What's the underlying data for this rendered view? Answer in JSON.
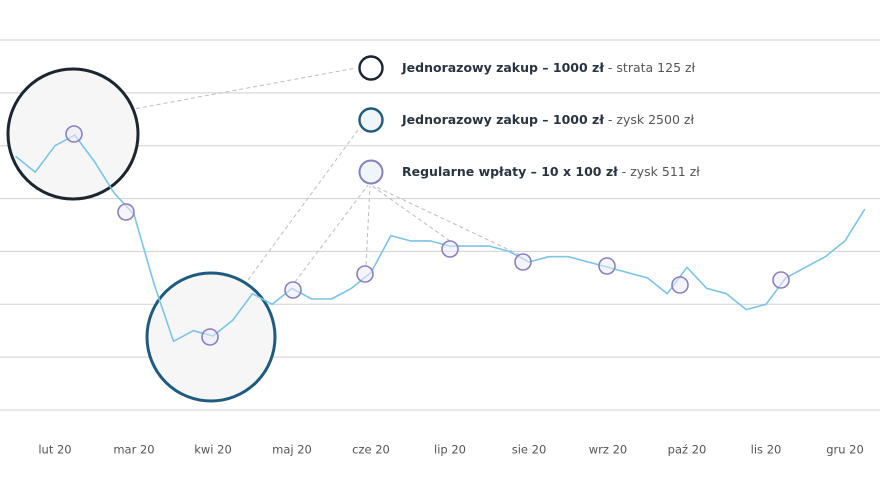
{
  "chart_data": {
    "type": "line",
    "categories": [
      null,
      null,
      "lut 20",
      null,
      null,
      null,
      "mar 20",
      null,
      null,
      null,
      "kwi 20",
      null,
      null,
      null,
      "maj 20",
      null,
      null,
      null,
      "cze 20",
      null,
      null,
      null,
      "lip 20",
      null,
      null,
      null,
      "sie 20",
      null,
      null,
      null,
      "wrz 20",
      null,
      null,
      null,
      "paź 20",
      null,
      null,
      null,
      "lis 20",
      null,
      null,
      null,
      "gru 20",
      null
    ],
    "series": [
      {
        "color": "#7cc4e6",
        "values": [
          4.8,
          4.5,
          5.0,
          5.2,
          4.7,
          4.1,
          3.7,
          2.4,
          1.3,
          1.5,
          1.4,
          1.7,
          2.2,
          2.0,
          2.3,
          2.1,
          2.1,
          2.3,
          2.6,
          3.3,
          3.2,
          3.2,
          3.1,
          3.1,
          3.1,
          3.0,
          2.8,
          2.9,
          2.9,
          2.8,
          2.7,
          2.6,
          2.5,
          2.2,
          2.7,
          2.3,
          2.2,
          1.9,
          2.0,
          2.5,
          2.7,
          2.9,
          3.2,
          3.8
        ]
      }
    ],
    "ylim": [
      0,
      7
    ],
    "yticks": [
      0,
      1,
      2,
      3,
      4,
      5,
      6,
      7
    ],
    "grid": true,
    "legend": [
      {
        "label": "Jednorazowy zakup – 1000 zł",
        "result": " - strata 125 zł",
        "color": "#1c2630"
      },
      {
        "label": "Jednorazowy zakup – 1000 zł",
        "result": " - zysk 2500 zł",
        "color": "#1f5b80"
      },
      {
        "label": "Regularne wpłaty – 10 x 100 zł",
        "result": " - zysk 511 zł",
        "color": "#8a80c0"
      }
    ]
  }
}
